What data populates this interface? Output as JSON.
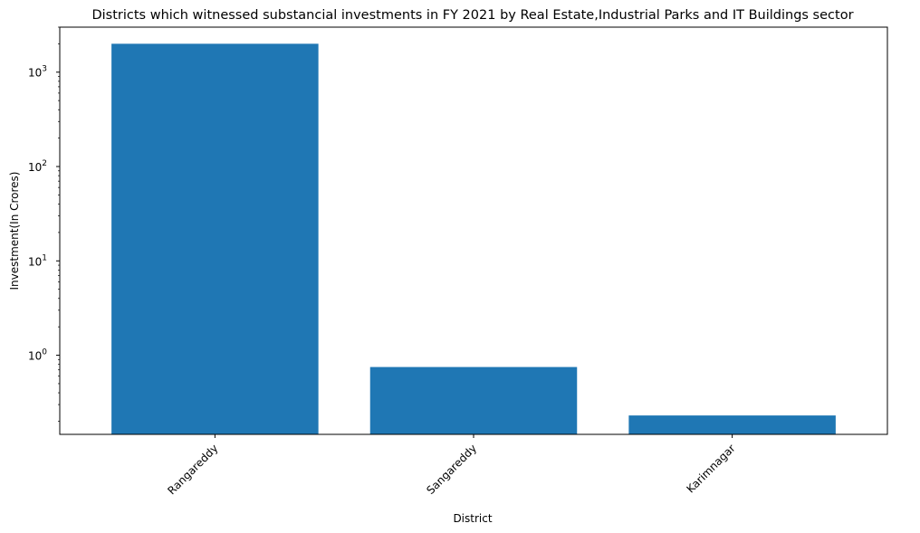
{
  "chart_data": {
    "type": "bar",
    "title": "Districts which witnessed substancial investments in FY 2021 by Real Estate,Industrial Parks and IT Buildings sector",
    "xlabel": "District",
    "ylabel": "Investment(In Crores)",
    "categories": [
      "Rangareddy",
      "Sangareddy",
      "Karimnagar"
    ],
    "values": [
      2000,
      0.75,
      0.23
    ],
    "yscale": "log",
    "ylim": [
      0.145,
      3000
    ],
    "y_major_ticks": [
      {
        "value": 1,
        "base": "10",
        "exp": "0"
      },
      {
        "value": 10,
        "base": "10",
        "exp": "1"
      },
      {
        "value": 100,
        "base": "10",
        "exp": "2"
      },
      {
        "value": 1000,
        "base": "10",
        "exp": "3"
      }
    ],
    "grid": false,
    "bar_color": "#1f77b4",
    "xtick_rotation": 45
  }
}
